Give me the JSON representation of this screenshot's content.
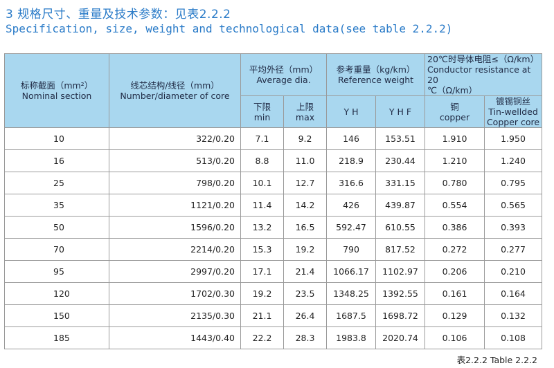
{
  "heading": {
    "cn": "3 规格尺寸、重量及技术参数：见表2.2.2",
    "en": "Specification, size, weight and technological data(see table 2.2.2)"
  },
  "table": {
    "headers": {
      "nominal_section": {
        "cn": "标称截面（mm²）",
        "en": "Nominal section"
      },
      "core": {
        "cn": "线芯结构/线径（mm）",
        "en": "Number/diameter of core"
      },
      "avg_dia": {
        "cn": "平均外径（mm）",
        "en": "Average dia."
      },
      "min": {
        "cn": "下限",
        "en": "min"
      },
      "max": {
        "cn": "上限",
        "en": "max"
      },
      "weight": {
        "cn": "参考重量（kg/km）",
        "en": "Reference weight"
      },
      "yh": "Y H",
      "yhf": "Y H F",
      "resistance": {
        "cn": "20℃时导体电阻≤（Ω/km）",
        "en": "Conductor resistance at 20",
        "en2": "℃（Ω/km）"
      },
      "copper": {
        "cn": "铜",
        "en": "copper"
      },
      "tinned": {
        "cn": "镀锡铜丝",
        "en": "Tin-wellded",
        "en2": "Copper core"
      }
    },
    "rows": [
      {
        "section": "10",
        "core": "322/0.20",
        "min": "7.1",
        "max": "9.2",
        "yh": "146",
        "yhf": "153.51",
        "copper": "1.910",
        "tinned": "1.950"
      },
      {
        "section": "16",
        "core": "513/0.20",
        "min": "8.8",
        "max": "11.0",
        "yh": "218.9",
        "yhf": "230.44",
        "copper": "1.210",
        "tinned": "1.240"
      },
      {
        "section": "25",
        "core": "798/0.20",
        "min": "10.1",
        "max": "12.7",
        "yh": "316.6",
        "yhf": "331.15",
        "copper": "0.780",
        "tinned": "0.795"
      },
      {
        "section": "35",
        "core": "1121/0.20",
        "min": "11.4",
        "max": "14.2",
        "yh": "426",
        "yhf": "439.87",
        "copper": "0.554",
        "tinned": "0.565"
      },
      {
        "section": "50",
        "core": "1596/0.20",
        "min": "13.2",
        "max": "16.5",
        "yh": "592.47",
        "yhf": "610.55",
        "copper": "0.386",
        "tinned": "0.393"
      },
      {
        "section": "70",
        "core": "2214/0.20",
        "min": "15.3",
        "max": "19.2",
        "yh": "790",
        "yhf": "817.52",
        "copper": "0.272",
        "tinned": "0.277"
      },
      {
        "section": "95",
        "core": "2997/0.20",
        "min": "17.1",
        "max": "21.4",
        "yh": "1066.17",
        "yhf": "1102.97",
        "copper": "0.206",
        "tinned": "0.210"
      },
      {
        "section": "120",
        "core": "1702/0.30",
        "min": "19.2",
        "max": "23.5",
        "yh": "1348.25",
        "yhf": "1392.55",
        "copper": "0.161",
        "tinned": "0.164"
      },
      {
        "section": "150",
        "core": "2135/0.30",
        "min": "21.1",
        "max": "26.4",
        "yh": "1687.5",
        "yhf": "1698.72",
        "copper": "0.129",
        "tinned": "0.132"
      },
      {
        "section": "185",
        "core": "1443/0.40",
        "min": "22.2",
        "max": "28.3",
        "yh": "1983.8",
        "yhf": "2020.74",
        "copper": "0.106",
        "tinned": "0.108"
      }
    ]
  },
  "footnote": "表2.2.2  Table 2.2.2",
  "colors": {
    "heading": "#2a7bc8",
    "header_bg": "#a9d7ef",
    "border": "#9a9a9a"
  }
}
